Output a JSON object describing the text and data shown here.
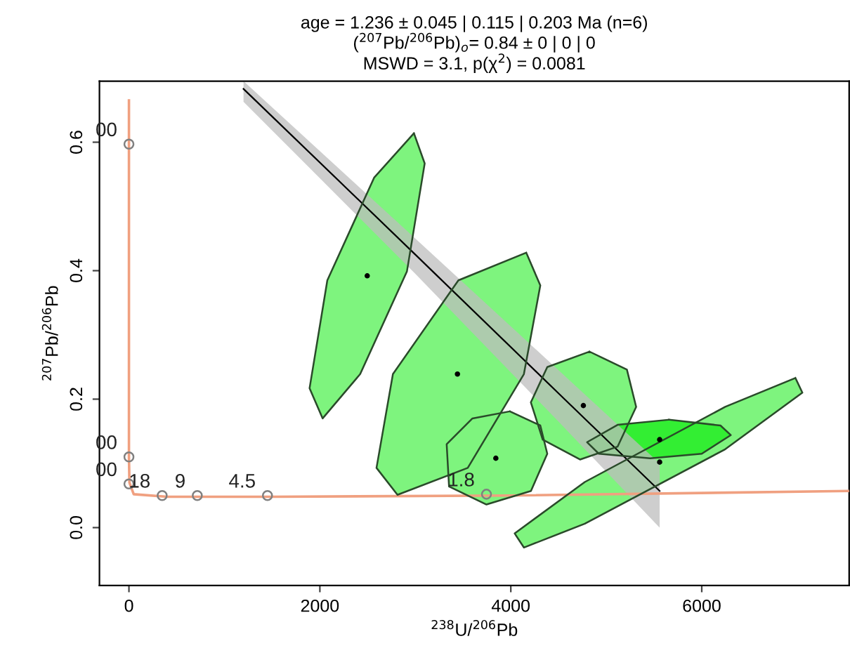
{
  "chart_data": {
    "type": "scatter",
    "title": "age = 1.236 ± 0.045 | 0.115 | 0.203 Ma (n=6)\n($^{207}$Pb/$^{206}$Pb)$_{o}$= 0.84 ± 0 | 0 | 0\nMSWD = 3.1, p(χ$^{2}$) = 0.0081",
    "xlabel": "$^{238}$U/$^{206}$Pb",
    "ylabel": "$^{207}$Pb/$^{206}$Pb",
    "xlim": [
      -309,
      7544
    ],
    "ylim": [
      -0.09,
      0.695
    ],
    "xticks": [
      0,
      2000,
      4000,
      6000
    ],
    "yticks": [
      {
        "value": 0,
        "label": "0.0"
      },
      {
        "value": 0.2,
        "label": "0.2"
      },
      {
        "value": 0.4,
        "label": "0.4"
      },
      {
        "value": 0.6,
        "label": "0.6"
      }
    ],
    "series": [
      {
        "type": "area",
        "color": "#7ef47e",
        "x": [
          2985,
          3098,
          2912,
          2422,
          2029,
          1892,
          2078,
          2569
        ],
        "values": [
          0.614,
          0.567,
          0.399,
          0.239,
          0.17,
          0.217,
          0.385,
          0.545
        ]
      },
      {
        "type": "area",
        "color": "#7ef47e",
        "x": [
          4162,
          4309,
          4137,
          3549,
          2813,
          2593,
          2765,
          3451
        ],
        "values": [
          0.428,
          0.377,
          0.239,
          0.093,
          0.051,
          0.093,
          0.239,
          0.385
        ]
      },
      {
        "type": "area",
        "color": "#7ef47e",
        "x": [
          3990,
          4309,
          4382,
          4211,
          3745,
          3353,
          3328,
          3598
        ],
        "values": [
          0.181,
          0.159,
          0.115,
          0.057,
          0.036,
          0.064,
          0.13,
          0.17
        ]
      },
      {
        "type": "area",
        "color": "#7ef47e",
        "x": [
          4824,
          5216,
          5313,
          5118,
          4725,
          4334,
          4210,
          4382
        ],
        "values": [
          0.274,
          0.246,
          0.188,
          0.126,
          0.106,
          0.137,
          0.195,
          0.25
        ]
      },
      {
        "type": "area",
        "color": "#7ef47e",
        "x": [
          6981,
          7054,
          6246,
          4775,
          4137,
          4040,
          4775,
          6246
        ],
        "values": [
          0.233,
          0.21,
          0.122,
          0.006,
          -0.031,
          -0.009,
          0.071,
          0.188
        ]
      },
      {
        "type": "area",
        "color": "#33ee33",
        "x": [
          5657,
          6196,
          6304,
          6000,
          5460,
          4922,
          4799,
          5118
        ],
        "values": [
          0.168,
          0.159,
          0.144,
          0.115,
          0.108,
          0.115,
          0.133,
          0.16
        ]
      },
      {
        "type": "line",
        "color": "#000000",
        "x": [
          1200,
          3000,
          4500,
          5559
        ],
        "values": [
          0.683,
          0.425,
          0.209,
          0.057
        ],
        "lower": [
          0.663,
          0.395,
          0.165,
          0.0
        ],
        "upper": [
          0.695,
          0.45,
          0.245,
          0.1
        ]
      },
      {
        "type": "line",
        "color": "#f0a080",
        "x": [
          0,
          0,
          5,
          50,
          400,
          1500,
          4000,
          7544
        ],
        "values": [
          0.665,
          0.11,
          0.07,
          0.052,
          0.048,
          0.048,
          0.05,
          0.057
        ]
      },
      {
        "type": "scatter",
        "color": "#808080",
        "marker": "circle",
        "x": [
          0,
          0,
          0,
          348,
          716,
          1451,
          3745
        ],
        "values": [
          0.597,
          0.11,
          0.068,
          0.05,
          0.05,
          0.05,
          0.052
        ]
      },
      {
        "color": "#000000",
        "marker": "dot",
        "x": [
          2496,
          3441,
          3843,
          4760,
          5559,
          5559
        ],
        "values": [
          0.392,
          0.239,
          0.108,
          0.19,
          0.137,
          0.102
        ]
      }
    ],
    "annotations": [
      {
        "text": "00",
        "x": 0,
        "y": 0.597
      },
      {
        "text": "00",
        "x": 0,
        "y": 0.11
      },
      {
        "text": "00",
        "x": 0,
        "y": 0.068
      },
      {
        "text": "18",
        "x": 348,
        "y": 0.05
      },
      {
        "text": "9",
        "x": 716,
        "y": 0.05
      },
      {
        "text": "4.5",
        "x": 1451,
        "y": 0.05
      },
      {
        "text": "1.8",
        "x": 3745,
        "y": 0.052
      }
    ]
  }
}
